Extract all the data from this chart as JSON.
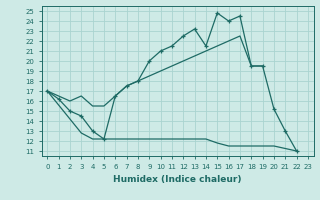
{
  "xlabel": "Humidex (Indice chaleur)",
  "bg_color": "#ceeae6",
  "grid_color": "#aad4d0",
  "line_color": "#1e6b65",
  "xlim": [
    -0.5,
    23.5
  ],
  "ylim": [
    10.5,
    25.5
  ],
  "xticks": [
    0,
    1,
    2,
    3,
    4,
    5,
    6,
    7,
    8,
    9,
    10,
    11,
    12,
    13,
    14,
    15,
    16,
    17,
    18,
    19,
    20,
    21,
    22,
    23
  ],
  "yticks": [
    11,
    12,
    13,
    14,
    15,
    16,
    17,
    18,
    19,
    20,
    21,
    22,
    23,
    24,
    25
  ],
  "curve_upper_x": [
    0,
    1,
    2,
    3,
    4,
    5,
    6,
    7,
    8,
    9,
    10,
    11,
    12,
    13,
    14,
    15,
    16,
    17,
    18,
    19,
    20,
    21,
    22
  ],
  "curve_upper_y": [
    17.0,
    16.2,
    15.0,
    14.5,
    13.0,
    12.2,
    16.5,
    17.5,
    18.0,
    20.0,
    21.0,
    21.5,
    22.5,
    23.2,
    21.5,
    24.8,
    24.0,
    24.5,
    19.5,
    19.5,
    15.2,
    13.0,
    11.0
  ],
  "curve_middle_x": [
    0,
    1,
    2,
    3,
    4,
    5,
    6,
    7,
    8,
    9,
    10,
    11,
    12,
    13,
    14,
    15,
    16,
    17,
    18,
    19
  ],
  "curve_middle_y": [
    17.0,
    16.5,
    16.0,
    16.5,
    15.5,
    15.5,
    16.5,
    17.5,
    18.0,
    18.5,
    19.0,
    19.5,
    20.0,
    20.5,
    21.0,
    21.5,
    22.0,
    22.5,
    19.5,
    19.5
  ],
  "curve_lower_x": [
    0,
    3,
    4,
    5,
    6,
    7,
    8,
    9,
    10,
    11,
    12,
    13,
    14,
    15,
    16,
    17,
    18,
    19,
    20,
    22
  ],
  "curve_lower_y": [
    17.0,
    12.8,
    12.2,
    12.2,
    12.2,
    12.2,
    12.2,
    12.2,
    12.2,
    12.2,
    12.2,
    12.2,
    12.2,
    11.8,
    11.5,
    11.5,
    11.5,
    11.5,
    11.5,
    11.0
  ]
}
